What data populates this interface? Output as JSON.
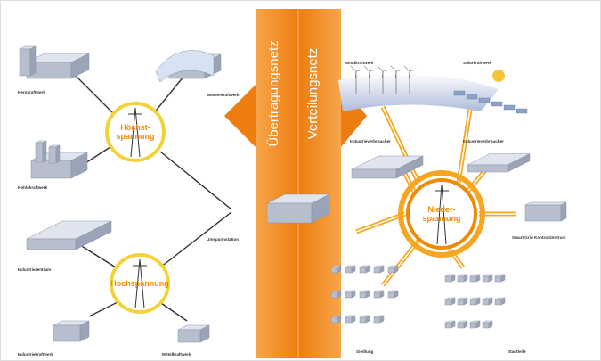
{
  "bands": {
    "transmission": "Übertragungsnetz",
    "distribution": "Verteilungsnetz"
  },
  "hubs": [
    {
      "lines": [
        "Höchst-",
        "spannung"
      ]
    },
    {
      "lines": [
        "Hochspannung"
      ]
    },
    {
      "lines": [
        "Nieder-",
        "spannung"
      ]
    }
  ],
  "nodes": [
    {
      "label": "Kernkraftwerk"
    },
    {
      "label": "Wasserkraftwerk"
    },
    {
      "label": "Kohlekraftwerk"
    },
    {
      "label": "Umspannstation"
    },
    {
      "label": "Industriezentrum"
    },
    {
      "label": "Industriekraftwerk"
    },
    {
      "label": "Mittelkraftwerk"
    },
    {
      "label": "Windkraftwerk"
    },
    {
      "label": "Solarkraftwerk"
    },
    {
      "label": "Industrieverbraucher"
    },
    {
      "label": "Industrieverbraucher"
    },
    {
      "label": "Smart Grid Kontrollzentrum"
    },
    {
      "label": "Siedlung"
    },
    {
      "label": "Stadtteile"
    }
  ]
}
